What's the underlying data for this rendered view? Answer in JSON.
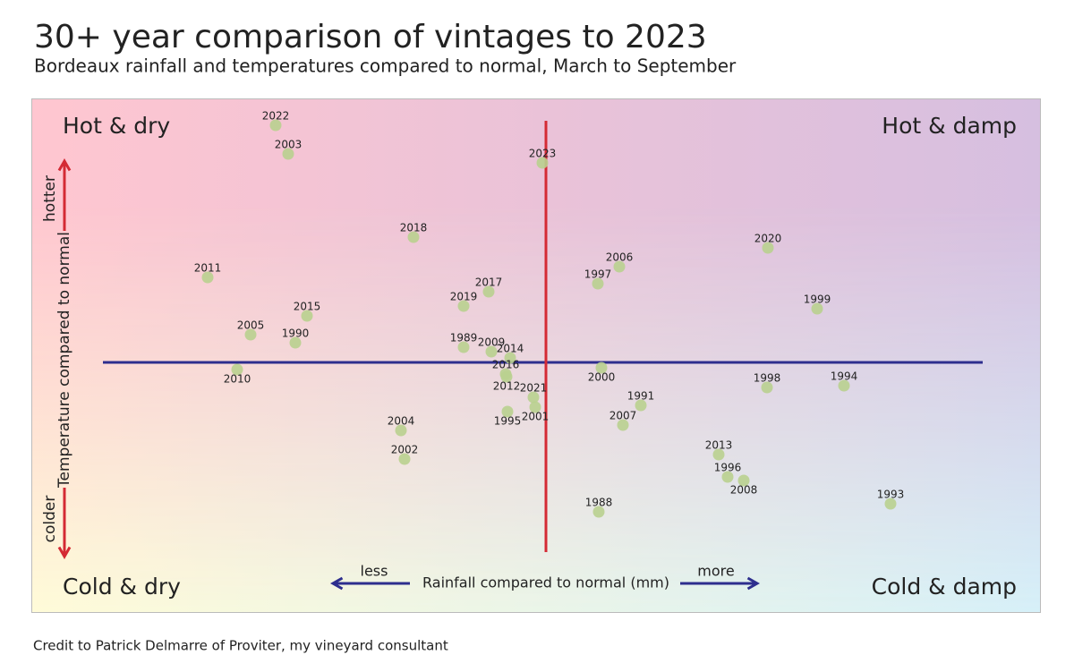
{
  "chart_data": {
    "type": "scatter",
    "title": "30+ year comparison of vintages to 2023",
    "subtitle": "Bordeaux rainfall and temperatures compared to normal, March to September",
    "x_label": "Rainfall compared to normal (mm)",
    "y_label": "Temperature compared to normal",
    "x_less": "less",
    "x_more": "more",
    "y_more": "hotter",
    "y_less": "colder",
    "quadrants": {
      "top_left": "Hot & dry",
      "top_right": "Hot & damp",
      "bottom_left": "Cold & dry",
      "bottom_right": "Cold & damp"
    },
    "credit": "Credit to Patrick Delmarre of Proviter, my vineyard consultant",
    "color": "#b9d08f",
    "xlim": [
      -575,
      553
    ],
    "ylim": [
      -280,
      295
    ],
    "labels": [
      "2022",
      "2003",
      "2023",
      "2018",
      "2011",
      "2020",
      "2006",
      "1997",
      "2017",
      "2019",
      "2015",
      "1999",
      "2005",
      "1990",
      "1989",
      "2009",
      "2014",
      "2010",
      "2016",
      "2000",
      "1998",
      "1994",
      "2012",
      "1995",
      "2021",
      "2001",
      "1991",
      "2007",
      "2004",
      "2002",
      "2013",
      "1996",
      "2008",
      "1993",
      "1988"
    ],
    "x": [
      -302,
      -288,
      -4,
      -148,
      -378,
      248,
      82,
      58,
      -64,
      -92,
      -267,
      303,
      -330,
      -280,
      -92,
      -61,
      -40,
      -345,
      -45,
      62,
      247,
      333,
      -44,
      -43,
      -14,
      -12,
      106,
      86,
      -162,
      -158,
      193,
      203,
      221,
      385,
      59
    ],
    "y": [
      265,
      233,
      223,
      140,
      95,
      128,
      107,
      88,
      79,
      63,
      52,
      60,
      31,
      22,
      17,
      12,
      5,
      -8,
      -13,
      -6,
      -28,
      -26,
      -16,
      -55,
      -39,
      -50,
      -48,
      -70,
      -76,
      -108,
      -103,
      -128,
      -132,
      -158,
      -167
    ]
  }
}
